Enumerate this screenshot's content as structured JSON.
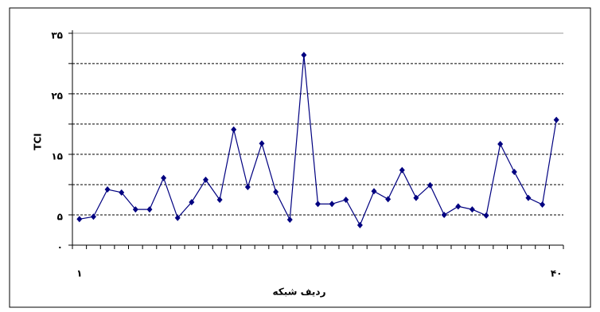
{
  "chart_data": {
    "type": "line",
    "y_axis_label": "TCI",
    "x_axis_label": "ردیف شبکه",
    "categories": [
      "۱",
      null,
      null,
      null,
      null,
      null,
      null,
      null,
      null,
      null,
      null,
      null,
      null,
      null,
      null,
      null,
      null,
      null,
      null,
      null,
      null,
      null,
      null,
      null,
      null,
      null,
      null,
      null,
      null,
      null,
      null,
      null,
      null,
      null,
      "۴۰"
    ],
    "values": [
      4.3,
      4.7,
      9.2,
      8.7,
      5.9,
      5.9,
      11.1,
      4.5,
      7.1,
      10.8,
      7.5,
      19.1,
      9.6,
      16.8,
      8.8,
      4.2,
      31.4,
      6.8,
      6.8,
      7.5,
      3.3,
      8.9,
      7.6,
      12.4,
      7.8,
      9.9,
      5.0,
      6.4,
      5.9,
      4.9,
      16.7,
      12.1,
      7.8,
      6.7,
      20.7
    ],
    "color": "#000080",
    "ylim": [
      0,
      35.5
    ],
    "yticks": [
      {
        "value": 0,
        "label": "٠"
      },
      {
        "value": 5,
        "label": "۵"
      },
      {
        "value": 15,
        "label": "۱۵"
      },
      {
        "value": 25,
        "label": "۲۵"
      },
      {
        "value": 35,
        "label": "۳۵"
      }
    ],
    "minor_yticks": [
      10,
      20,
      30
    ],
    "grid": true
  }
}
